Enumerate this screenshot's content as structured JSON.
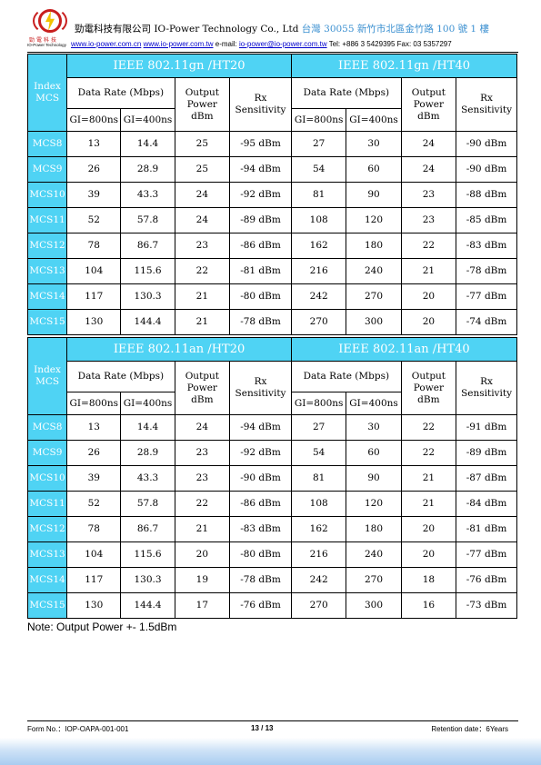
{
  "header": {
    "logo_cn": "勁電科技",
    "logo_en": "IO-Power Technology",
    "company": "勁電科技有限公司 IO-Power Technology Co., Ltd",
    "address": "台灣 30055 新竹市北區金竹路 100 號 1 樓",
    "link1": "www.io-power.com.cn",
    "link2": "www.io-power.com.tw",
    "email_label": "e-mail:",
    "email": "io-power@io-power.com.tw",
    "phone": "Tel: +886 3 5429395 Fax: 03 5357297"
  },
  "table_labels": {
    "index": "Index",
    "mcs": "MCS",
    "data_rate": "Data Rate (Mbps)",
    "output1": "Output",
    "output2": "Power",
    "output3": "dBm",
    "rx1": "Rx",
    "rx2": "Sensitivity",
    "gi800": "GI=800ns",
    "gi400": "GI=400ns"
  },
  "tables": [
    {
      "left_title": "IEEE 802.11gn /HT20",
      "right_title": "IEEE 802.11gn /HT40",
      "rows": [
        {
          "mcs": "MCS8",
          "a": "13",
          "b": "14.4",
          "c": "25",
          "d": "-95 dBm",
          "e": "27",
          "f": "30",
          "g": "24",
          "h": "-90 dBm"
        },
        {
          "mcs": "MCS9",
          "a": "26",
          "b": "28.9",
          "c": "25",
          "d": "-94 dBm",
          "e": "54",
          "f": "60",
          "g": "24",
          "h": "-90 dBm"
        },
        {
          "mcs": "MCS10",
          "a": "39",
          "b": "43.3",
          "c": "24",
          "d": "-92 dBm",
          "e": "81",
          "f": "90",
          "g": "23",
          "h": "-88 dBm"
        },
        {
          "mcs": "MCS11",
          "a": "52",
          "b": "57.8",
          "c": "24",
          "d": "-89 dBm",
          "e": "108",
          "f": "120",
          "g": "23",
          "h": "-85 dBm"
        },
        {
          "mcs": "MCS12",
          "a": "78",
          "b": "86.7",
          "c": "23",
          "d": "-86 dBm",
          "e": "162",
          "f": "180",
          "g": "22",
          "h": "-83 dBm"
        },
        {
          "mcs": "MCS13",
          "a": "104",
          "b": "115.6",
          "c": "22",
          "d": "-81 dBm",
          "e": "216",
          "f": "240",
          "g": "21",
          "h": "-78 dBm"
        },
        {
          "mcs": "MCS14",
          "a": "117",
          "b": "130.3",
          "c": "21",
          "d": "-80 dBm",
          "e": "242",
          "f": "270",
          "g": "20",
          "h": "-77 dBm"
        },
        {
          "mcs": "MCS15",
          "a": "130",
          "b": "144.4",
          "c": "21",
          "d": "-78 dBm",
          "e": "270",
          "f": "300",
          "g": "20",
          "h": "-74 dBm"
        }
      ]
    },
    {
      "left_title": "IEEE 802.11an /HT20",
      "right_title": "IEEE 802.11an /HT40",
      "rows": [
        {
          "mcs": "MCS8",
          "a": "13",
          "b": "14.4",
          "c": "24",
          "d": "-94 dBm",
          "e": "27",
          "f": "30",
          "g": "22",
          "h": "-91 dBm"
        },
        {
          "mcs": "MCS9",
          "a": "26",
          "b": "28.9",
          "c": "23",
          "d": "-92 dBm",
          "e": "54",
          "f": "60",
          "g": "22",
          "h": "-89 dBm"
        },
        {
          "mcs": "MCS10",
          "a": "39",
          "b": "43.3",
          "c": "23",
          "d": "-90 dBm",
          "e": "81",
          "f": "90",
          "g": "21",
          "h": "-87 dBm"
        },
        {
          "mcs": "MCS11",
          "a": "52",
          "b": "57.8",
          "c": "22",
          "d": "-86 dBm",
          "e": "108",
          "f": "120",
          "g": "21",
          "h": "-84 dBm"
        },
        {
          "mcs": "MCS12",
          "a": "78",
          "b": "86.7",
          "c": "21",
          "d": "-83 dBm",
          "e": "162",
          "f": "180",
          "g": "20",
          "h": "-81 dBm"
        },
        {
          "mcs": "MCS13",
          "a": "104",
          "b": "115.6",
          "c": "20",
          "d": "-80 dBm",
          "e": "216",
          "f": "240",
          "g": "20",
          "h": "-77 dBm"
        },
        {
          "mcs": "MCS14",
          "a": "117",
          "b": "130.3",
          "c": "19",
          "d": "-78 dBm",
          "e": "242",
          "f": "270",
          "g": "18",
          "h": "-76 dBm"
        },
        {
          "mcs": "MCS15",
          "a": "130",
          "b": "144.4",
          "c": "17",
          "d": "-76 dBm",
          "e": "270",
          "f": "300",
          "g": "16",
          "h": "-73 dBm"
        }
      ]
    }
  ],
  "note": "Note: Output Power +- 1.5dBm",
  "footer": {
    "form_no": "Form No.：IOP-OAPA-001-001",
    "page": "13 / 13",
    "retention": "Retention date：6Years"
  },
  "colors": {
    "header_cell": "#4fd3f4",
    "link": "#0000cc",
    "address": "#3a8fd0",
    "logo_red": "#c81e1e"
  }
}
